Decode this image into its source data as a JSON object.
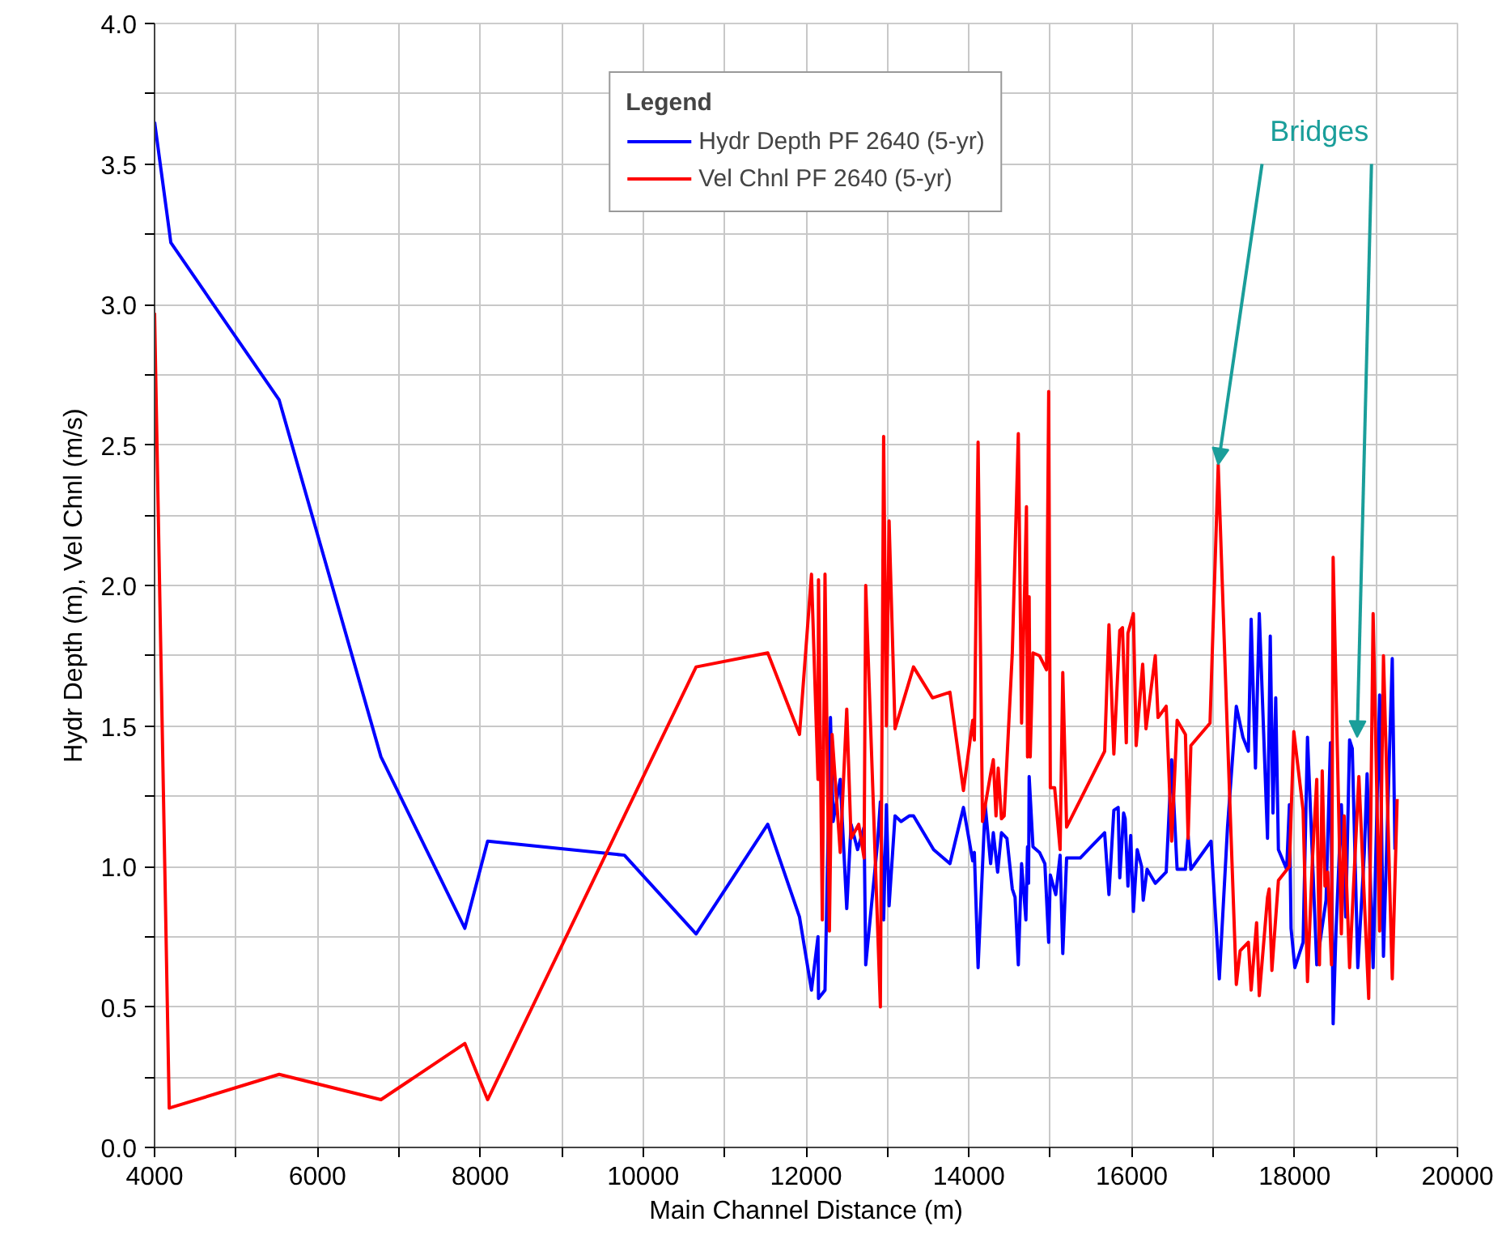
{
  "chart_data": {
    "type": "line",
    "xlabel": "Main Channel Distance (m)",
    "ylabel": "Hydr Depth (m), Vel Chnl (m/s)",
    "legend_title": "Legend",
    "legend": "top",
    "grid": true,
    "line_style": "solid",
    "marker": "none",
    "xlim": [
      4000,
      20000
    ],
    "ylim": [
      0,
      4
    ],
    "xticks": [
      4000,
      {
        "value": 5000,
        "label": null
      },
      6000,
      {
        "value": 7000,
        "label": null
      },
      8000,
      {
        "value": 9000,
        "label": null
      },
      10000,
      {
        "value": 11000,
        "label": null
      },
      12000,
      {
        "value": 13000,
        "label": null
      },
      14000,
      {
        "value": 15000,
        "label": null
      },
      16000,
      {
        "value": 17000,
        "label": null
      },
      18000,
      {
        "value": 19000,
        "label": null
      },
      20000
    ],
    "yticks": [
      {
        "value": 0,
        "label": "0.0"
      },
      {
        "value": 0.25,
        "label": null
      },
      {
        "value": 0.5,
        "label": "0.5"
      },
      {
        "value": 0.75,
        "label": null
      },
      {
        "value": 1,
        "label": "1.0"
      },
      {
        "value": 1.25,
        "label": null
      },
      {
        "value": 1.5,
        "label": "1.5"
      },
      {
        "value": 1.75,
        "label": null
      },
      {
        "value": 2,
        "label": "2.0"
      },
      {
        "value": 2.25,
        "label": null
      },
      {
        "value": 2.5,
        "label": "2.5"
      },
      {
        "value": 2.75,
        "label": null
      },
      {
        "value": 3,
        "label": "3.0"
      },
      {
        "value": 3.25,
        "label": null
      },
      {
        "value": 3.5,
        "label": "3.5"
      },
      {
        "value": 3.75,
        "label": null
      },
      {
        "value": 4,
        "label": "4.0"
      }
    ],
    "annotations": [
      {
        "text": "Bridges",
        "x": 17062,
        "y": 2.43
      }
    ],
    "series": [
      {
        "name": "Hydr Depth PF 2640 (5-yr)",
        "color": "#0000ff",
        "x": [
          4000,
          4200,
          5530,
          6780,
          7810,
          8090,
          9770,
          10650,
          11530,
          11920,
          12067,
          12147,
          12153,
          12233,
          12300,
          12333,
          12420,
          12500,
          12553,
          12633,
          12713,
          12733,
          12880,
          12913,
          12953,
          12987,
          13020,
          13093,
          13167,
          13267,
          13320,
          13567,
          13767,
          13933,
          14047,
          14067,
          14113,
          14200,
          14267,
          14300,
          14353,
          14400,
          14467,
          14533,
          14567,
          14607,
          14647,
          14700,
          14720,
          14733,
          14740,
          14787,
          14867,
          14933,
          14980,
          15000,
          15067,
          15120,
          15153,
          15200,
          15367,
          15500,
          15667,
          15720,
          15780,
          15833,
          15853,
          15900,
          15919,
          15953,
          15987,
          16020,
          16067,
          16121,
          16141,
          16188,
          16289,
          16423,
          16490,
          16557,
          16659,
          16692,
          16726,
          16974,
          17075,
          17176,
          17284,
          17365,
          17432,
          17466,
          17519,
          17566,
          17667,
          17701,
          17734,
          17768,
          17801,
          17902,
          17936,
          17956,
          18003,
          18104,
          18158,
          18272,
          18326,
          18386,
          18440,
          18473,
          18507,
          18574,
          18628,
          18675,
          18708,
          18776,
          18856,
          18890,
          18964,
          19044,
          19091,
          19199,
          19232
        ],
        "values": [
          3.65,
          3.22,
          2.66,
          1.39,
          0.78,
          1.09,
          1.04,
          0.76,
          1.15,
          0.82,
          0.56,
          0.75,
          0.53,
          0.56,
          1.53,
          1.16,
          1.31,
          0.85,
          1.15,
          1.06,
          1.14,
          0.65,
          1.09,
          1.23,
          0.81,
          1.22,
          0.86,
          1.18,
          1.16,
          1.18,
          1.18,
          1.06,
          1.01,
          1.21,
          1.02,
          1.05,
          0.64,
          1.22,
          1.01,
          1.12,
          0.98,
          1.12,
          1.1,
          0.92,
          0.89,
          0.65,
          1.01,
          0.81,
          1.07,
          0.94,
          1.32,
          1.07,
          1.05,
          1.01,
          0.73,
          0.97,
          0.9,
          1.04,
          0.69,
          1.03,
          1.03,
          1.07,
          1.12,
          0.9,
          1.2,
          1.21,
          0.96,
          1.19,
          1.17,
          0.93,
          1.11,
          0.84,
          1.06,
          1.0,
          0.88,
          0.99,
          0.94,
          0.98,
          1.38,
          0.99,
          0.99,
          1.11,
          0.99,
          1.09,
          0.6,
          1.14,
          1.57,
          1.46,
          1.41,
          1.88,
          1.35,
          1.9,
          1.1,
          1.82,
          1.19,
          1.6,
          1.06,
          0.99,
          1.22,
          0.78,
          0.64,
          0.73,
          1.46,
          0.65,
          0.76,
          0.88,
          1.44,
          0.44,
          0.76,
          1.22,
          0.82,
          1.45,
          1.42,
          0.64,
          1.05,
          1.33,
          0.64,
          1.61,
          0.68,
          1.74,
          1.06
        ]
      },
      {
        "name": "Vel Chnl PF 2640 (5-yr)",
        "color": "#ff0000",
        "x": [
          4000,
          4180,
          5530,
          6780,
          7810,
          8090,
          10650,
          11530,
          11920,
          12067,
          12147,
          12153,
          12200,
          12233,
          12287,
          12320,
          12420,
          12500,
          12553,
          12647,
          12713,
          12733,
          12913,
          12953,
          12987,
          13020,
          13093,
          13320,
          13553,
          13767,
          13933,
          14047,
          14067,
          14113,
          14167,
          14267,
          14300,
          14333,
          14360,
          14400,
          14433,
          14533,
          14607,
          14647,
          14707,
          14720,
          14740,
          14753,
          14787,
          14867,
          14953,
          14980,
          15000,
          15053,
          15120,
          15153,
          15200,
          15667,
          15720,
          15780,
          15853,
          15886,
          15933,
          15953,
          16020,
          16054,
          16134,
          16175,
          16289,
          16323,
          16423,
          16490,
          16557,
          16659,
          16692,
          16726,
          16961,
          17062,
          17163,
          17284,
          17331,
          17432,
          17466,
          17533,
          17566,
          17667,
          17687,
          17721,
          17801,
          17936,
          17990,
          18104,
          18158,
          18218,
          18272,
          18305,
          18339,
          18372,
          18406,
          18453,
          18473,
          18574,
          18608,
          18675,
          18789,
          18910,
          18964,
          19044,
          19091,
          19199,
          19259
        ],
        "values": [
          2.97,
          0.14,
          0.26,
          0.17,
          0.37,
          0.17,
          1.71,
          1.76,
          1.47,
          2.04,
          1.31,
          2.02,
          0.81,
          2.04,
          0.77,
          1.47,
          1.05,
          1.56,
          1.1,
          1.15,
          1.03,
          2.0,
          0.5,
          2.53,
          1.5,
          2.23,
          1.49,
          1.71,
          1.6,
          1.62,
          1.27,
          1.52,
          1.45,
          2.51,
          1.16,
          1.33,
          1.38,
          1.18,
          1.35,
          1.17,
          1.18,
          1.76,
          2.54,
          1.51,
          2.28,
          1.39,
          1.96,
          1.39,
          1.76,
          1.75,
          1.7,
          2.69,
          1.28,
          1.28,
          1.06,
          1.69,
          1.14,
          1.41,
          1.86,
          1.4,
          1.84,
          1.85,
          1.44,
          1.83,
          1.9,
          1.43,
          1.72,
          1.49,
          1.75,
          1.53,
          1.57,
          1.09,
          1.52,
          1.47,
          1.1,
          1.43,
          1.51,
          2.43,
          1.57,
          0.58,
          0.7,
          0.73,
          0.56,
          0.8,
          0.54,
          0.89,
          0.92,
          0.63,
          0.95,
          1.0,
          1.48,
          1.2,
          0.59,
          1.02,
          1.31,
          0.65,
          1.34,
          0.93,
          0.98,
          0.65,
          2.1,
          0.76,
          1.18,
          0.64,
          1.32,
          0.53,
          1.9,
          0.77,
          1.75,
          0.6,
          1.24
        ]
      }
    ]
  }
}
